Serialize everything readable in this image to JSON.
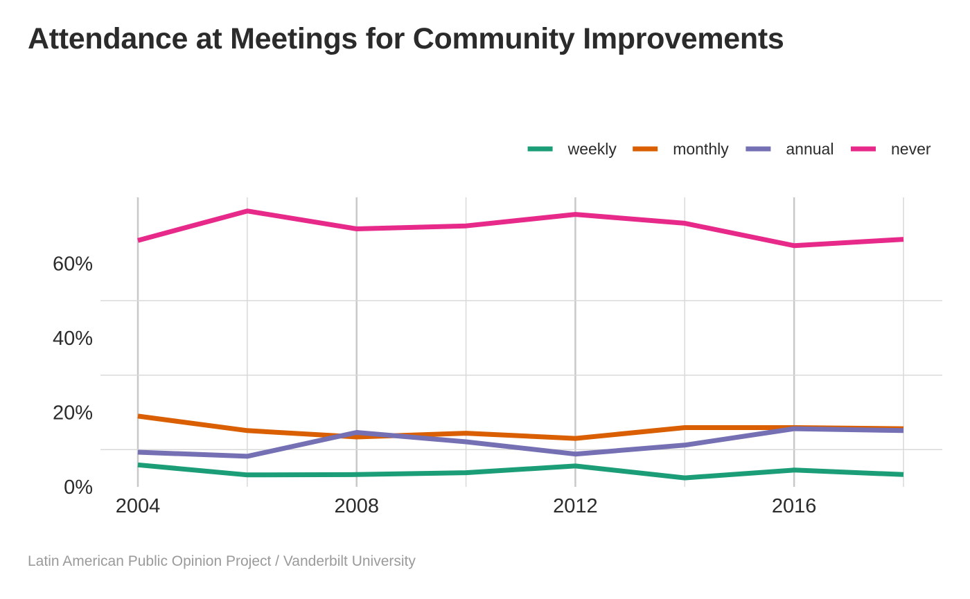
{
  "title": "Attendance at Meetings for Community Improvements",
  "caption": "Latin American Public Opinion Project / Vanderbilt University",
  "chart_data": {
    "type": "line",
    "x": [
      2004,
      2006,
      2008,
      2010,
      2012,
      2014,
      2016,
      2018
    ],
    "x_ticks": [
      2004,
      2008,
      2012,
      2016
    ],
    "x_tick_labels": [
      "2004",
      "2008",
      "2012",
      "2016"
    ],
    "y_ticks": [
      0,
      20,
      40,
      60
    ],
    "y_tick_labels": [
      "0%",
      "20%",
      "40%",
      "60%"
    ],
    "ylim": [
      0,
      68
    ],
    "xlim": [
      2004,
      2018
    ],
    "xlabel": "",
    "ylabel": "",
    "grid": true,
    "legend_position": "top-right",
    "series": [
      {
        "name": "weekly",
        "color": "#1b9e77",
        "values": [
          5.9,
          3.2,
          3.3,
          3.8,
          5.6,
          2.4,
          4.5,
          3.3
        ]
      },
      {
        "name": "monthly",
        "color": "#d95f02",
        "values": [
          19.0,
          15.1,
          13.4,
          14.4,
          13.0,
          15.9,
          15.9,
          15.6
        ]
      },
      {
        "name": "annual",
        "color": "#7570b3",
        "values": [
          9.3,
          8.2,
          14.6,
          12.1,
          8.8,
          11.2,
          15.6,
          15.1
        ]
      },
      {
        "name": "never",
        "color": "#e7298a",
        "values": [
          66.2,
          74.1,
          69.3,
          70.1,
          73.2,
          70.8,
          64.8,
          66.5
        ]
      }
    ]
  }
}
